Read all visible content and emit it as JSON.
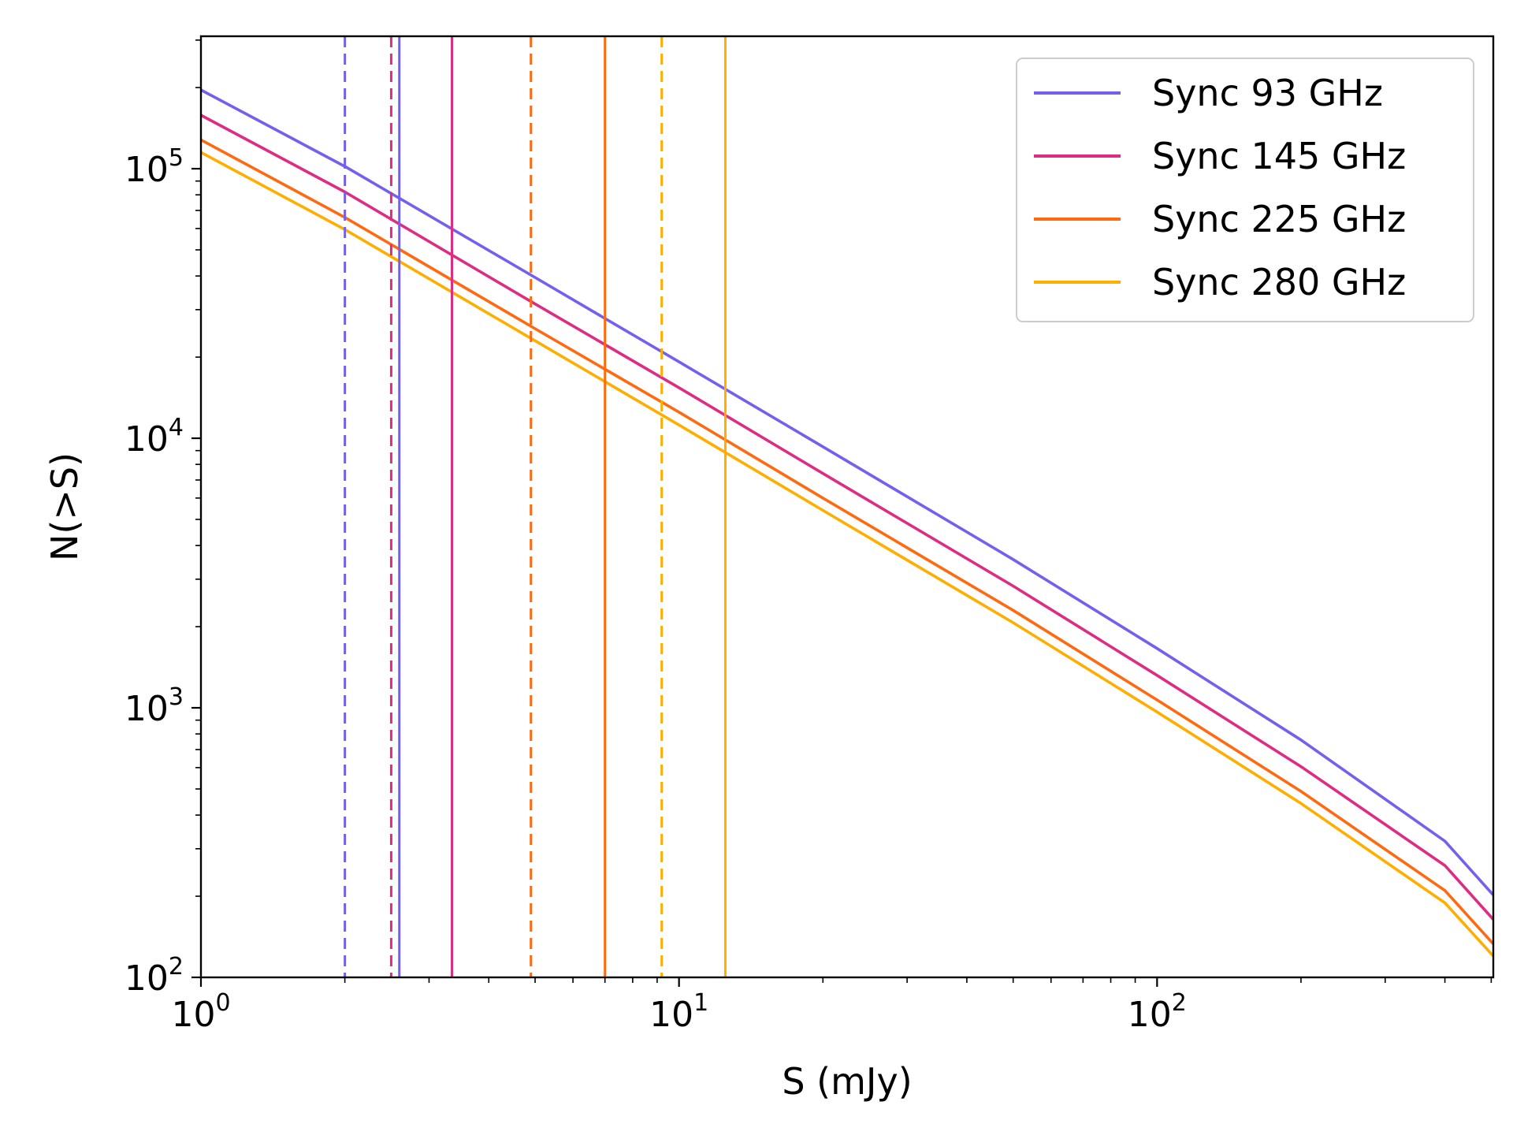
{
  "chart_data": {
    "type": "line",
    "title": "",
    "xlabel": "S (mJy)",
    "ylabel": "N(>S)",
    "xscale": "log",
    "yscale": "log",
    "xlim": [
      1,
      505
    ],
    "ylim": [
      100,
      310000
    ],
    "grid": false,
    "legend_position": "top-right",
    "x_ticks": [
      {
        "value": 1,
        "base": "10",
        "exp": "0"
      },
      {
        "value": 10,
        "base": "10",
        "exp": "1"
      },
      {
        "value": 100,
        "base": "10",
        "exp": "2"
      }
    ],
    "y_ticks": [
      {
        "value": 100,
        "base": "10",
        "exp": "2"
      },
      {
        "value": 1000,
        "base": "10",
        "exp": "3"
      },
      {
        "value": 10000,
        "base": "10",
        "exp": "4"
      },
      {
        "value": 100000,
        "base": "10",
        "exp": "5"
      }
    ],
    "series": [
      {
        "name": "Sync 93 GHz",
        "color": "#7460ee",
        "x": [
          1,
          2,
          5,
          10,
          20,
          50,
          100,
          200,
          400,
          505
        ],
        "y": [
          196000,
          102000,
          39500,
          19200,
          9300,
          3550,
          1660,
          760,
          320,
          202
        ],
        "dashed_vline": 2.0,
        "solid_vline": 2.6
      },
      {
        "name": "Sync 145 GHz",
        "color": "#de2c84",
        "x": [
          1,
          2,
          5,
          10,
          20,
          50,
          100,
          200,
          400,
          505
        ],
        "y": [
          158000,
          82000,
          31500,
          15400,
          7400,
          2830,
          1320,
          605,
          260,
          164
        ],
        "dashed_vline": 2.5,
        "solid_vline": 3.35
      },
      {
        "name": "Sync 225 GHz",
        "color": "#ff6a10",
        "x": [
          1,
          2,
          5,
          10,
          20,
          50,
          100,
          200,
          400,
          505
        ],
        "y": [
          128000,
          66000,
          25500,
          12500,
          6000,
          2300,
          1070,
          490,
          210,
          133
        ],
        "dashed_vline": 4.9,
        "solid_vline": 7.0
      },
      {
        "name": "Sync 280 GHz",
        "color": "#ffae00",
        "x": [
          1,
          2,
          5,
          10,
          20,
          50,
          100,
          200,
          400,
          505
        ],
        "y": [
          115000,
          59500,
          23000,
          11200,
          5400,
          2070,
          965,
          442,
          189,
          120
        ],
        "dashed_vline": 9.2,
        "solid_vline": 12.5
      }
    ]
  }
}
